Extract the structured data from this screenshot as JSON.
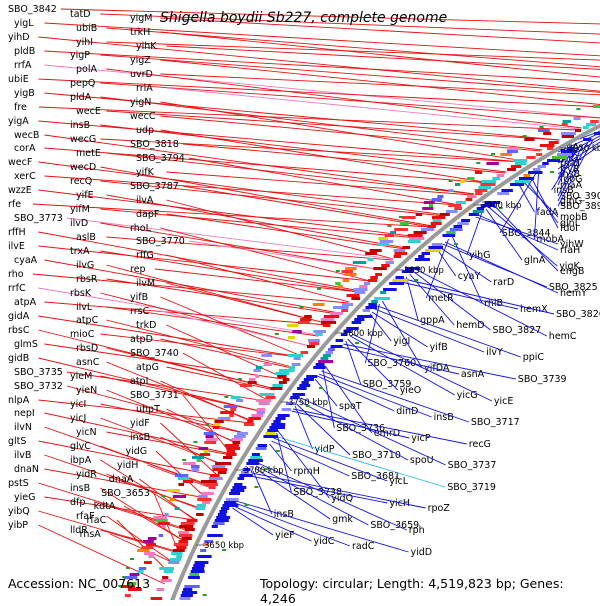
{
  "title": "Shigella boydii Sb227, complete genome",
  "footer": {
    "accession": "Accession: NC_007613",
    "topology": "Topology: circular; Length: 4,519,823 bp; Genes: 4,246"
  },
  "colors": {
    "backbone": "#9a9a9a",
    "forward_gene": "#e81010",
    "reverse_gene": "#1010e0",
    "rna_forward": "#f07ac0",
    "rna_reverse": "#30b8e8",
    "feature_dot": "#2a9a2a"
  },
  "kbp_ticks": [
    "4000 kbp",
    "3950 kbp",
    "3900 kbp",
    "3850 kbp",
    "3800 kbp",
    "3750 kbp",
    "3700 kbp",
    "3650 kbp"
  ],
  "left_labels": [
    {
      "text": "SBO_3842",
      "color": "red"
    },
    {
      "text": "tatD",
      "color": "red"
    },
    {
      "text": "yigM",
      "color": "red"
    },
    {
      "text": "yigL",
      "color": "red"
    },
    {
      "text": "ubiB",
      "color": "red"
    },
    {
      "text": "trkH",
      "color": "red"
    },
    {
      "text": "yihD",
      "color": "red"
    },
    {
      "text": "yihI",
      "color": "red"
    },
    {
      "text": "yihK",
      "color": "red"
    },
    {
      "text": "pldB",
      "color": "red"
    },
    {
      "text": "yigP",
      "color": "red"
    },
    {
      "text": "yigZ",
      "color": "red"
    },
    {
      "text": "rrfA",
      "color": "pink"
    },
    {
      "text": "polA",
      "color": "red"
    },
    {
      "text": "uvrD",
      "color": "red"
    },
    {
      "text": "ubiE",
      "color": "red"
    },
    {
      "text": "pepQ",
      "color": "red"
    },
    {
      "text": "rrlA",
      "color": "pink"
    },
    {
      "text": "yigB",
      "color": "red"
    },
    {
      "text": "pldA",
      "color": "red"
    },
    {
      "text": "yigN",
      "color": "red"
    },
    {
      "text": "fre",
      "color": "red"
    },
    {
      "text": "wecE",
      "color": "red"
    },
    {
      "text": "wecC",
      "color": "red"
    },
    {
      "text": "yigA",
      "color": "red"
    },
    {
      "text": "insB",
      "color": "red"
    },
    {
      "text": "udp",
      "color": "red"
    },
    {
      "text": "wecB",
      "color": "red"
    },
    {
      "text": "wecG",
      "color": "red"
    },
    {
      "text": "SBO_3818",
      "color": "red"
    },
    {
      "text": "corA",
      "color": "red"
    },
    {
      "text": "metE",
      "color": "red"
    },
    {
      "text": "SBO_3794",
      "color": "red"
    },
    {
      "text": "wecF",
      "color": "red"
    },
    {
      "text": "wecD",
      "color": "red"
    },
    {
      "text": "yifK",
      "color": "red"
    },
    {
      "text": "xerC",
      "color": "red"
    },
    {
      "text": "recQ",
      "color": "red"
    },
    {
      "text": "SBO_3787",
      "color": "red"
    },
    {
      "text": "wzzE",
      "color": "red"
    },
    {
      "text": "yifE",
      "color": "red"
    },
    {
      "text": "ilvA",
      "color": "red"
    },
    {
      "text": "rfe",
      "color": "red"
    },
    {
      "text": "yifM",
      "color": "red"
    },
    {
      "text": "dapF",
      "color": "red"
    },
    {
      "text": "SBO_3773",
      "color": "pink"
    },
    {
      "text": "ilvD",
      "color": "red"
    },
    {
      "text": "rhoL",
      "color": "red"
    },
    {
      "text": "rffH",
      "color": "red"
    },
    {
      "text": "aslB",
      "color": "red"
    },
    {
      "text": "SBO_3770",
      "color": "pink"
    },
    {
      "text": "ilvE",
      "color": "red"
    },
    {
      "text": "trxA",
      "color": "red"
    },
    {
      "text": "rffG",
      "color": "red"
    },
    {
      "text": "cyaA",
      "color": "red"
    },
    {
      "text": "ilvG",
      "color": "red"
    },
    {
      "text": "rep",
      "color": "red"
    },
    {
      "text": "rho",
      "color": "red"
    },
    {
      "text": "rbsR",
      "color": "red"
    },
    {
      "text": "ilvM",
      "color": "red"
    },
    {
      "text": "rrfC",
      "color": "pink"
    },
    {
      "text": "rbsK",
      "color": "red"
    },
    {
      "text": "yifB",
      "color": "red"
    },
    {
      "text": "atpA",
      "color": "red"
    },
    {
      "text": "ilvL",
      "color": "red"
    },
    {
      "text": "rrsC",
      "color": "pink"
    },
    {
      "text": "gidA",
      "color": "red"
    },
    {
      "text": "atpC",
      "color": "red"
    },
    {
      "text": "trkD",
      "color": "red"
    },
    {
      "text": "rbsC",
      "color": "red"
    },
    {
      "text": "mioC",
      "color": "red"
    },
    {
      "text": "atpD",
      "color": "red"
    },
    {
      "text": "glmS",
      "color": "red"
    },
    {
      "text": "rbsD",
      "color": "red"
    },
    {
      "text": "SBO_3740",
      "color": "red"
    },
    {
      "text": "gidB",
      "color": "red"
    },
    {
      "text": "asnC",
      "color": "red"
    },
    {
      "text": "atpG",
      "color": "red"
    },
    {
      "text": "SBO_3735",
      "color": "red"
    },
    {
      "text": "yieM",
      "color": "red"
    },
    {
      "text": "atpI",
      "color": "red"
    },
    {
      "text": "SBO_3732",
      "color": "red"
    },
    {
      "text": "yieN",
      "color": "red"
    },
    {
      "text": "SBO_3731",
      "color": "red"
    },
    {
      "text": "nlpA",
      "color": "red"
    },
    {
      "text": "yicI",
      "color": "red"
    },
    {
      "text": "uhpT",
      "color": "red"
    },
    {
      "text": "nepI",
      "color": "red"
    },
    {
      "text": "yicJ",
      "color": "red"
    },
    {
      "text": "yidF",
      "color": "red"
    },
    {
      "text": "ilvN",
      "color": "red"
    },
    {
      "text": "yicN",
      "color": "red"
    },
    {
      "text": "insB",
      "color": "red"
    },
    {
      "text": "gltS",
      "color": "red"
    },
    {
      "text": "glvC",
      "color": "red"
    },
    {
      "text": "yidG",
      "color": "red"
    },
    {
      "text": "ilvB",
      "color": "red"
    },
    {
      "text": "ibpA",
      "color": "red"
    },
    {
      "text": "yidH",
      "color": "red"
    },
    {
      "text": "dnaN",
      "color": "red"
    },
    {
      "text": "yidR",
      "color": "red"
    },
    {
      "text": "dnaA",
      "color": "red"
    },
    {
      "text": "pstS",
      "color": "red"
    },
    {
      "text": "insB",
      "color": "red"
    },
    {
      "text": "SBO_3653",
      "color": "red"
    },
    {
      "text": "yieG",
      "color": "red"
    },
    {
      "text": "dfp",
      "color": "red"
    },
    {
      "text": "kdtA",
      "color": "red"
    },
    {
      "text": "yibQ",
      "color": "red"
    },
    {
      "text": "rfaF",
      "color": "red"
    },
    {
      "text": "rfaC",
      "color": "red"
    },
    {
      "text": "yibP",
      "color": "red"
    },
    {
      "text": "lldR",
      "color": "red"
    },
    {
      "text": "rhsA",
      "color": "red"
    }
  ],
  "right_labels": [
    {
      "text": "priA",
      "color": "blue"
    },
    {
      "text": "fpr",
      "color": "blue"
    },
    {
      "text": "yiiQ",
      "color": "blue"
    },
    {
      "text": "rhaT",
      "color": "blue"
    },
    {
      "text": "frvR",
      "color": "blue"
    },
    {
      "text": "insB",
      "color": "blue"
    },
    {
      "text": "fdoG",
      "color": "blue"
    },
    {
      "text": "rhaA",
      "color": "blue"
    },
    {
      "text": "insB",
      "color": "blue"
    },
    {
      "text": "SBO_3903",
      "color": "blue"
    },
    {
      "text": "glnG",
      "color": "blue"
    },
    {
      "text": "SBO_3892",
      "color": "blue"
    },
    {
      "text": "fadA",
      "color": "blue"
    },
    {
      "text": "mobB",
      "color": "blue"
    },
    {
      "text": "glnL",
      "color": "blue"
    },
    {
      "text": "fdoI",
      "color": "blue"
    },
    {
      "text": "SBO_3844",
      "color": "blue"
    },
    {
      "text": "mobA",
      "color": "blue"
    },
    {
      "text": "yihW",
      "color": "blue"
    },
    {
      "text": "rfaH",
      "color": "blue"
    },
    {
      "text": "yihG",
      "color": "blue"
    },
    {
      "text": "glnA",
      "color": "blue"
    },
    {
      "text": "yigK",
      "color": "blue"
    },
    {
      "text": "engB",
      "color": "blue"
    },
    {
      "text": "cyaY",
      "color": "blue"
    },
    {
      "text": "rarD",
      "color": "blue"
    },
    {
      "text": "SBO_3825",
      "color": "blue"
    },
    {
      "text": "hemY",
      "color": "blue"
    },
    {
      "text": "metR",
      "color": "blue"
    },
    {
      "text": "rhlB",
      "color": "blue"
    },
    {
      "text": "hemX",
      "color": "blue"
    },
    {
      "text": "SBO_3826",
      "color": "blue"
    },
    {
      "text": "gppA",
      "color": "blue"
    },
    {
      "text": "hemD",
      "color": "blue"
    },
    {
      "text": "SBO_3827",
      "color": "blue"
    },
    {
      "text": "hemC",
      "color": "blue"
    },
    {
      "text": "yigI",
      "color": "blue"
    },
    {
      "text": "yifB",
      "color": "blue"
    },
    {
      "text": "ilvY",
      "color": "blue"
    },
    {
      "text": "ppiC",
      "color": "blue"
    },
    {
      "text": "SBO_3760",
      "color": "blue"
    },
    {
      "text": "yifDA",
      "color": "blue"
    },
    {
      "text": "asnA",
      "color": "blue"
    },
    {
      "text": "SBO_3739",
      "color": "blue"
    },
    {
      "text": "SBO_3759",
      "color": "blue"
    },
    {
      "text": "yieO",
      "color": "blue"
    },
    {
      "text": "yicG",
      "color": "blue"
    },
    {
      "text": "yicE",
      "color": "blue"
    },
    {
      "text": "spoT",
      "color": "blue"
    },
    {
      "text": "dinD",
      "color": "blue"
    },
    {
      "text": "insB",
      "color": "blue"
    },
    {
      "text": "SBO_3717",
      "color": "blue"
    },
    {
      "text": "SBO_3736",
      "color": "blue"
    },
    {
      "text": "emrD",
      "color": "blue"
    },
    {
      "text": "yicP",
      "color": "blue"
    },
    {
      "text": "recG",
      "color": "blue"
    },
    {
      "text": "yidP",
      "color": "blue"
    },
    {
      "text": "SBO_3710",
      "color": "blue"
    },
    {
      "text": "spoU",
      "color": "blue"
    },
    {
      "text": "SBO_3737",
      "color": "blue"
    },
    {
      "text": "rpmH",
      "color": "blue"
    },
    {
      "text": "SBO_3681",
      "color": "blue"
    },
    {
      "text": "yicL",
      "color": "blue"
    },
    {
      "text": "SBO_3719",
      "color": "cyan"
    },
    {
      "text": "SBO_3738",
      "color": "blue"
    },
    {
      "text": "yidQ",
      "color": "blue"
    },
    {
      "text": "yicH",
      "color": "blue"
    },
    {
      "text": "rpoZ",
      "color": "blue"
    },
    {
      "text": "insB",
      "color": "blue"
    },
    {
      "text": "gmk",
      "color": "blue"
    },
    {
      "text": "SBO_3659",
      "color": "blue"
    },
    {
      "text": "rph",
      "color": "blue"
    },
    {
      "text": "yieF",
      "color": "blue"
    },
    {
      "text": "yidC",
      "color": "blue"
    },
    {
      "text": "radC",
      "color": "blue"
    },
    {
      "text": "yidD",
      "color": "blue"
    }
  ]
}
